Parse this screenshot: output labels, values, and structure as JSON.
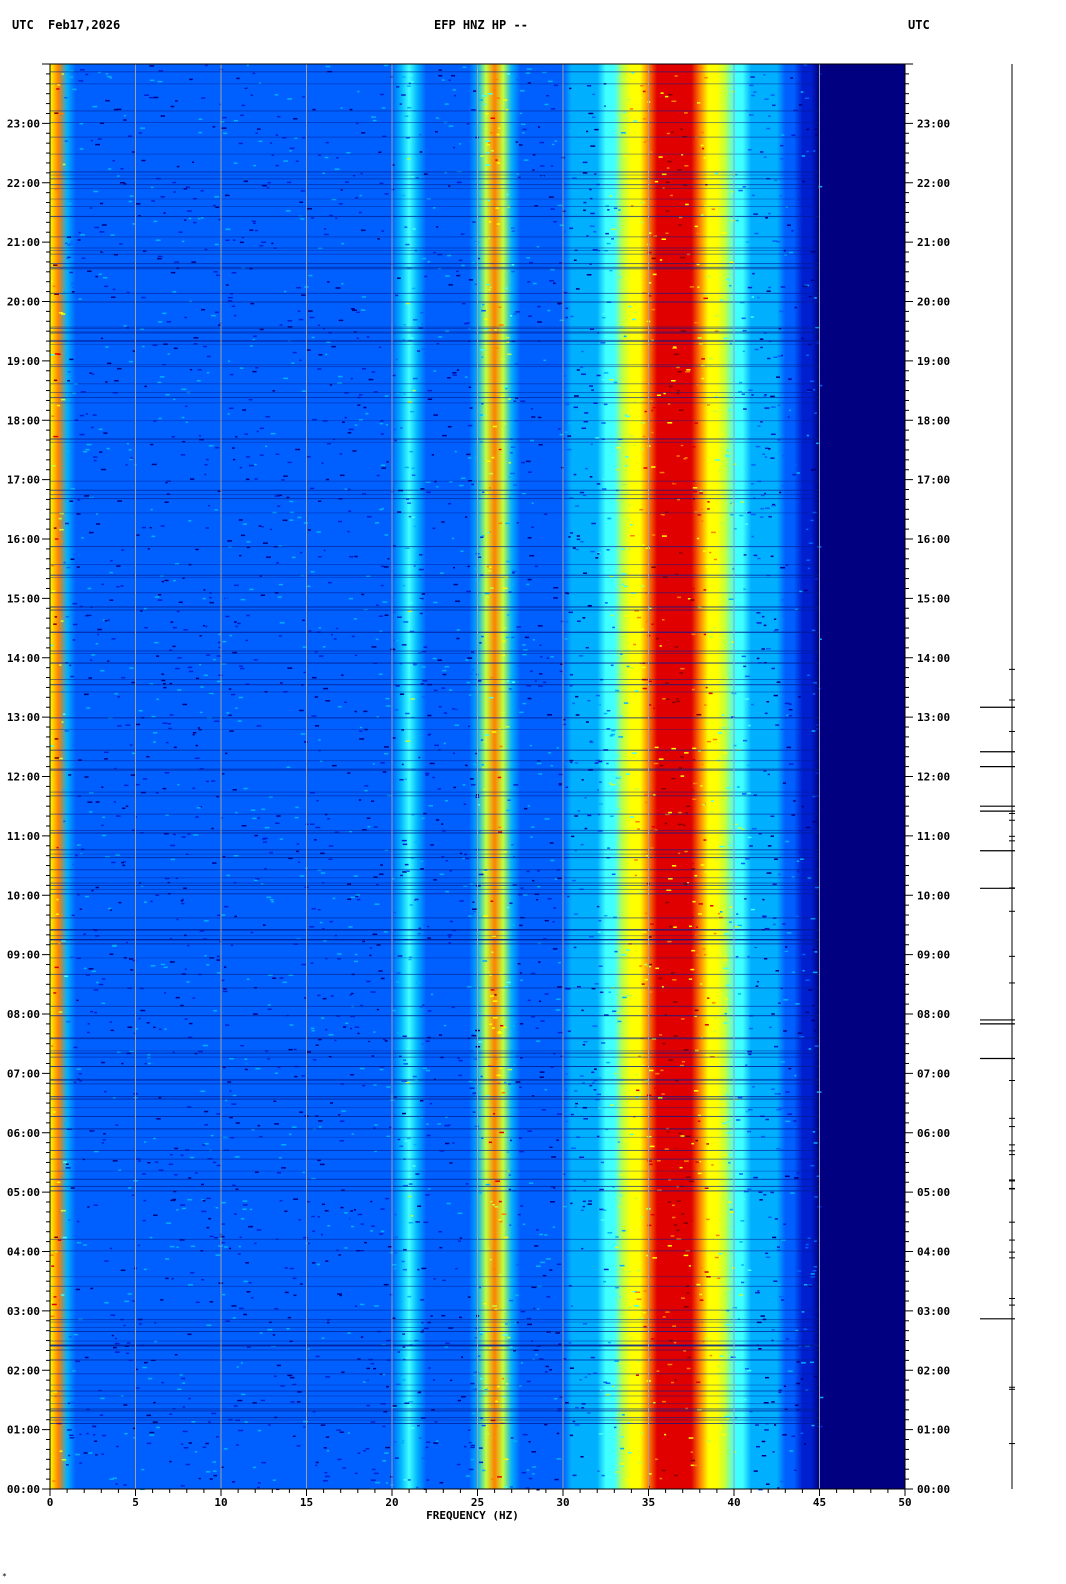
{
  "header": {
    "left_utc": "UTC",
    "date": "Feb17,2026",
    "station": "EFP HNZ HP --",
    "right_utc": "UTC"
  },
  "footer_mark": "*",
  "chart_data": {
    "type": "heatmap",
    "title": "EFP HNZ HP --",
    "xlabel": "FREQUENCY (HZ)",
    "ylabel": "UTC",
    "x_range": [
      0,
      50
    ],
    "x_ticks": [
      0,
      5,
      10,
      15,
      20,
      25,
      30,
      35,
      40,
      45,
      50
    ],
    "y_range_hours": [
      0,
      24
    ],
    "y_ticks": [
      "00:00",
      "01:00",
      "02:00",
      "03:00",
      "04:00",
      "05:00",
      "06:00",
      "07:00",
      "08:00",
      "09:00",
      "10:00",
      "11:00",
      "12:00",
      "13:00",
      "14:00",
      "15:00",
      "16:00",
      "17:00",
      "18:00",
      "19:00",
      "20:00",
      "21:00",
      "22:00",
      "23:00"
    ],
    "colormap": [
      "#000080",
      "#0020d0",
      "#0060ff",
      "#00b0ff",
      "#40ffff",
      "#c0ff40",
      "#ffff00",
      "#ff8000",
      "#e00000",
      "#800000"
    ],
    "energy_bands": [
      {
        "name": "low-frequency edge",
        "center_hz": 0.3,
        "width_hz": 0.4,
        "level": 0.85
      },
      {
        "name": "26 Hz line",
        "center_hz": 26.0,
        "width_hz": 0.8,
        "level": 0.75
      },
      {
        "name": "36 Hz band",
        "center_hz": 36.5,
        "width_hz": 3.5,
        "level": 0.85
      },
      {
        "name": "21 Hz line",
        "center_hz": 21.0,
        "width_hz": 0.5,
        "level": 0.4
      }
    ],
    "high_frequency_rolloff_hz": 45,
    "trace_events_utc": [
      "02:52",
      "07:15",
      "07:50",
      "07:54",
      "10:07",
      "10:45",
      "11:25",
      "11:30",
      "12:10",
      "12:25",
      "13:10"
    ]
  }
}
